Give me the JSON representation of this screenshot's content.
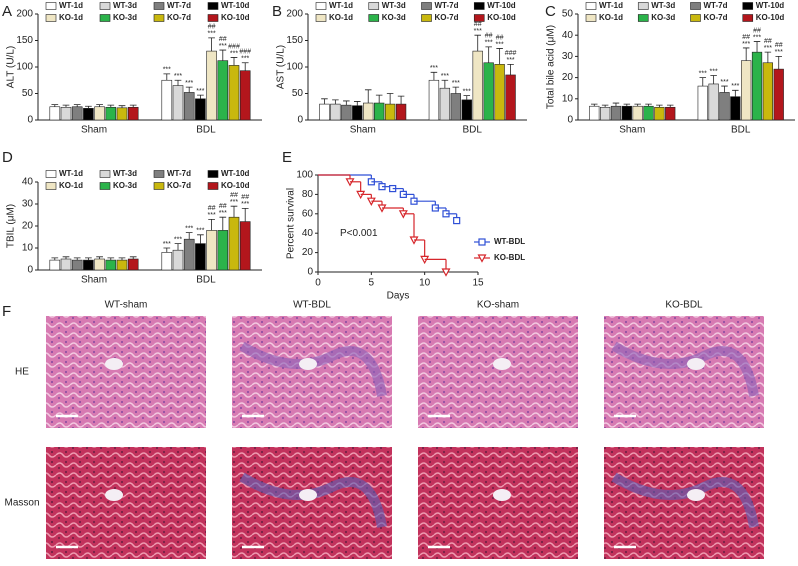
{
  "chart_data": [
    {
      "type": "bar",
      "panel_label": "A",
      "ylabel": "ALT (U/L)",
      "categories": [
        "Sham",
        "BDL"
      ],
      "ylim": [
        0,
        200
      ],
      "yticks": [
        0,
        50,
        100,
        150,
        200
      ],
      "series": [
        {
          "name": "WT-1d",
          "color": "#ffffff",
          "values": [
            25,
            75
          ],
          "errors": [
            4,
            12
          ],
          "annotations": [
            null,
            [
              "***"
            ]
          ]
        },
        {
          "name": "WT-3d",
          "color": "#d9d9d9",
          "values": [
            24,
            65
          ],
          "errors": [
            4,
            10
          ],
          "annotations": [
            null,
            [
              "***"
            ]
          ]
        },
        {
          "name": "WT-7d",
          "color": "#7f7f7f",
          "values": [
            25,
            52
          ],
          "errors": [
            4,
            10
          ],
          "annotations": [
            null,
            [
              "***"
            ]
          ]
        },
        {
          "name": "WT-10d",
          "color": "#000000",
          "values": [
            22,
            40
          ],
          "errors": [
            4,
            7
          ],
          "annotations": [
            null,
            [
              "***"
            ]
          ]
        },
        {
          "name": "KO-1d",
          "color": "#efe6c4",
          "values": [
            25,
            130
          ],
          "errors": [
            4,
            25
          ],
          "annotations": [
            null,
            [
              "##",
              "***"
            ]
          ]
        },
        {
          "name": "KO-3d",
          "color": "#2bb34a",
          "values": [
            24,
            112
          ],
          "errors": [
            4,
            20
          ],
          "annotations": [
            null,
            [
              "##",
              "***"
            ]
          ]
        },
        {
          "name": "KO-7d",
          "color": "#c9b80e",
          "values": [
            23,
            103
          ],
          "errors": [
            4,
            15
          ],
          "annotations": [
            null,
            [
              "###",
              "***"
            ]
          ]
        },
        {
          "name": "KO-10d",
          "color": "#b3161c",
          "values": [
            24,
            93
          ],
          "errors": [
            4,
            15
          ],
          "annotations": [
            null,
            [
              "###",
              "***"
            ]
          ]
        }
      ]
    },
    {
      "type": "bar",
      "panel_label": "B",
      "ylabel": "AST (U/L)",
      "categories": [
        "Sham",
        "BDL"
      ],
      "ylim": [
        0,
        200
      ],
      "yticks": [
        0,
        50,
        100,
        150,
        200
      ],
      "series": [
        {
          "name": "WT-1d",
          "color": "#ffffff",
          "values": [
            30,
            75
          ],
          "errors": [
            10,
            15
          ],
          "annotations": [
            null,
            [
              "***"
            ]
          ]
        },
        {
          "name": "WT-3d",
          "color": "#d9d9d9",
          "values": [
            30,
            60
          ],
          "errors": [
            8,
            15
          ],
          "annotations": [
            null,
            [
              "***"
            ]
          ]
        },
        {
          "name": "WT-7d",
          "color": "#7f7f7f",
          "values": [
            28,
            50
          ],
          "errors": [
            8,
            12
          ],
          "annotations": [
            null,
            [
              "***"
            ]
          ]
        },
        {
          "name": "WT-10d",
          "color": "#000000",
          "values": [
            27,
            38
          ],
          "errors": [
            8,
            8
          ],
          "annotations": [
            null,
            [
              "***"
            ]
          ]
        },
        {
          "name": "KO-1d",
          "color": "#efe6c4",
          "values": [
            32,
            130
          ],
          "errors": [
            25,
            30
          ],
          "annotations": [
            null,
            [
              "##",
              "***"
            ]
          ]
        },
        {
          "name": "KO-3d",
          "color": "#2bb34a",
          "values": [
            32,
            108
          ],
          "errors": [
            15,
            30
          ],
          "annotations": [
            null,
            [
              "##",
              "***"
            ]
          ]
        },
        {
          "name": "KO-7d",
          "color": "#c9b80e",
          "values": [
            30,
            105
          ],
          "errors": [
            20,
            30
          ],
          "annotations": [
            null,
            [
              "##",
              "***"
            ]
          ]
        },
        {
          "name": "KO-10d",
          "color": "#b3161c",
          "values": [
            30,
            85
          ],
          "errors": [
            15,
            20
          ],
          "annotations": [
            null,
            [
              "###",
              "***"
            ]
          ]
        }
      ]
    },
    {
      "type": "bar",
      "panel_label": "C",
      "ylabel": "Total bile acid (μM)",
      "categories": [
        "Sham",
        "BDL"
      ],
      "ylim": [
        0,
        50
      ],
      "yticks": [
        0,
        10,
        20,
        30,
        40,
        50
      ],
      "series": [
        {
          "name": "WT-1d",
          "color": "#ffffff",
          "values": [
            6.5,
            16
          ],
          "errors": [
            1,
            4
          ],
          "annotations": [
            null,
            [
              "***"
            ]
          ]
        },
        {
          "name": "WT-3d",
          "color": "#d9d9d9",
          "values": [
            6,
            17
          ],
          "errors": [
            1,
            4
          ],
          "annotations": [
            null,
            [
              "***"
            ]
          ]
        },
        {
          "name": "WT-7d",
          "color": "#7f7f7f",
          "values": [
            6.5,
            13
          ],
          "errors": [
            1.5,
            3
          ],
          "annotations": [
            null,
            [
              "***"
            ]
          ]
        },
        {
          "name": "WT-10d",
          "color": "#000000",
          "values": [
            6.5,
            11
          ],
          "errors": [
            1,
            3
          ],
          "annotations": [
            null,
            [
              "***"
            ]
          ]
        },
        {
          "name": "KO-1d",
          "color": "#efe6c4",
          "values": [
            6.5,
            28
          ],
          "errors": [
            1,
            6
          ],
          "annotations": [
            null,
            [
              "##",
              "***"
            ]
          ]
        },
        {
          "name": "KO-3d",
          "color": "#2bb34a",
          "values": [
            6.5,
            32
          ],
          "errors": [
            1,
            5
          ],
          "annotations": [
            null,
            [
              "##",
              "***"
            ]
          ]
        },
        {
          "name": "KO-7d",
          "color": "#c9b80e",
          "values": [
            6,
            27
          ],
          "errors": [
            1,
            5
          ],
          "annotations": [
            null,
            [
              "##",
              "***"
            ]
          ]
        },
        {
          "name": "KO-10d",
          "color": "#b3161c",
          "values": [
            6,
            24
          ],
          "errors": [
            1,
            6
          ],
          "annotations": [
            null,
            [
              "##",
              "***"
            ]
          ]
        }
      ]
    },
    {
      "type": "bar",
      "panel_label": "D",
      "ylabel": "TBIL (μM)",
      "categories": [
        "Sham",
        "BDL"
      ],
      "ylim": [
        0,
        40
      ],
      "yticks": [
        0,
        10,
        20,
        30,
        40
      ],
      "series": [
        {
          "name": "WT-1d",
          "color": "#ffffff",
          "values": [
            4.5,
            8
          ],
          "errors": [
            1,
            2
          ],
          "annotations": [
            null,
            [
              "***"
            ]
          ]
        },
        {
          "name": "WT-3d",
          "color": "#d9d9d9",
          "values": [
            5,
            9
          ],
          "errors": [
            1,
            3
          ],
          "annotations": [
            null,
            [
              "***"
            ]
          ]
        },
        {
          "name": "WT-7d",
          "color": "#7f7f7f",
          "values": [
            4.5,
            14
          ],
          "errors": [
            1,
            3
          ],
          "annotations": [
            null,
            [
              "***"
            ]
          ]
        },
        {
          "name": "WT-10d",
          "color": "#000000",
          "values": [
            4.5,
            12
          ],
          "errors": [
            1,
            4
          ],
          "annotations": [
            null,
            [
              "***"
            ]
          ]
        },
        {
          "name": "KO-1d",
          "color": "#efe6c4",
          "values": [
            5,
            18
          ],
          "errors": [
            1,
            5
          ],
          "annotations": [
            null,
            [
              "##",
              "***"
            ]
          ]
        },
        {
          "name": "KO-3d",
          "color": "#2bb34a",
          "values": [
            4.5,
            18
          ],
          "errors": [
            1,
            6
          ],
          "annotations": [
            null,
            [
              "##",
              "***"
            ]
          ]
        },
        {
          "name": "KO-7d",
          "color": "#c9b80e",
          "values": [
            4.5,
            24
          ],
          "errors": [
            1,
            5
          ],
          "annotations": [
            null,
            [
              "##",
              "***"
            ]
          ]
        },
        {
          "name": "KO-10d",
          "color": "#b3161c",
          "values": [
            5,
            22
          ],
          "errors": [
            1,
            6
          ],
          "annotations": [
            null,
            [
              "##",
              "***"
            ]
          ]
        }
      ]
    },
    {
      "type": "line",
      "drawstyle": "steps-post",
      "panel_label": "E",
      "ylabel": "Percent survival",
      "xlabel": "Days",
      "annotation": "P<0.001",
      "xlim": [
        0,
        15
      ],
      "xticks": [
        0,
        5,
        10,
        15
      ],
      "ylim": [
        0,
        100
      ],
      "yticks": [
        0,
        20,
        40,
        60,
        80,
        100
      ],
      "series": [
        {
          "name": "WT-BDL",
          "color": "#2f4fd6",
          "marker": "square",
          "x": [
            0,
            5,
            6,
            7,
            8,
            9,
            11,
            12,
            13
          ],
          "values": [
            100,
            93,
            88,
            86,
            80,
            73,
            66,
            60,
            53
          ]
        },
        {
          "name": "KO-BDL",
          "color": "#d6262b",
          "marker": "triangle-down",
          "x": [
            0,
            3,
            4,
            5,
            6,
            8,
            9,
            10,
            12
          ],
          "values": [
            100,
            93,
            80,
            73,
            66,
            60,
            33,
            13,
            0
          ]
        }
      ]
    }
  ],
  "panel_f": {
    "label": "F",
    "columns": [
      "WT-sham",
      "WT-BDL",
      "KO-sham",
      "KO-BDL"
    ],
    "rows": [
      "HE",
      "Masson"
    ]
  }
}
